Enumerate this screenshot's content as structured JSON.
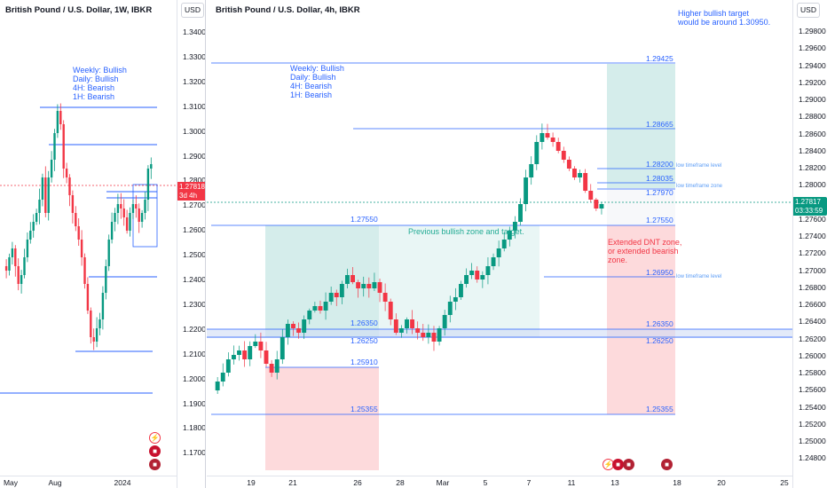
{
  "left_chart": {
    "title": "British Pound / U.S. Dollar, 1W, IBKR",
    "currency": "USD",
    "price_ticks": [
      "1.34000",
      "1.33000",
      "1.32000",
      "1.31000",
      "1.30000",
      "1.29000",
      "1.28000",
      "1.27000",
      "1.26000",
      "1.25000",
      "1.24000",
      "1.23000",
      "1.22000",
      "1.21000",
      "1.20000",
      "1.19000",
      "1.18000",
      "1.17000"
    ],
    "current_price": "1.27818",
    "countdown": "3d 4h",
    "time_labels": [
      "May",
      "Aug",
      "2024"
    ],
    "bias_note": "Weekly: Bullish\nDaily: Bullish\n4H: Bearish\n1H: Bearish",
    "colors": {
      "up": "#089981",
      "down": "#f23645",
      "level": "#2962ff"
    }
  },
  "right_chart": {
    "title": "British Pound / U.S. Dollar, 4h, IBKR",
    "currency": "USD",
    "price_ticks": [
      "1.29800",
      "1.29600",
      "1.29400",
      "1.29200",
      "1.29000",
      "1.28800",
      "1.28600",
      "1.28400",
      "1.28200",
      "1.28000",
      "1.27800",
      "1.27600",
      "1.27400",
      "1.27200",
      "1.27000",
      "1.26800",
      "1.26600",
      "1.26400",
      "1.26200",
      "1.26000",
      "1.25800",
      "1.25600",
      "1.25400",
      "1.25200",
      "1.25000",
      "1.24800"
    ],
    "current_price": "1.27817",
    "countdown": "03:33:59",
    "time_labels": [
      "19",
      "21",
      "26",
      "28",
      "Mar",
      "5",
      "7",
      "11",
      "13",
      "18",
      "20",
      "25"
    ],
    "bias_note": "Weekly: Bullish\nDaily: Bullish\n4H: Bearish\n1H: Bearish",
    "target_note": "Higher bullish target\nwould be around 1.30950.",
    "previous_zone_note": "Previous bullish zone and target.",
    "extended_note": "Extended DNT zone,\nor extended bearish\nzone.",
    "levels": [
      "1.29425",
      "1.28665",
      "1.28200",
      "1.28035",
      "1.27970",
      "1.27550",
      "1.27550",
      "1.26950",
      "1.26350",
      "1.26250",
      "1.26350",
      "1.26250",
      "1.25910",
      "1.25355",
      "1.25355"
    ],
    "tf_labels": {
      "low_tf_level_1": "low timeframe level",
      "low_tf_zone": "low timeframe zone",
      "low_tf_level_2": "low timeframe level"
    },
    "events": [
      "flash-icon",
      "uk-flag-icon",
      "us-flag-icon",
      "us-flag-icon"
    ],
    "colors": {
      "up": "#089981",
      "down": "#f23645",
      "level": "#2962ff",
      "zone_green": "#b2dfdb",
      "zone_red": "#fccbcd"
    }
  }
}
